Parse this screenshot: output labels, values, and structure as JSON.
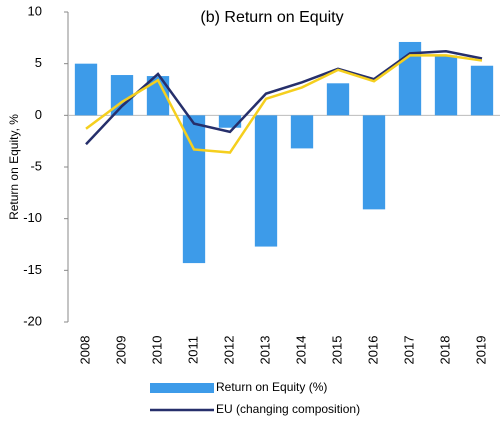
{
  "chart_data": {
    "type": "bar-line",
    "title": "(b) Return on Equity",
    "y_label": "Return on Equity, %",
    "categories": [
      "2008",
      "2009",
      "2010",
      "2011",
      "2012",
      "2013",
      "2014",
      "2015",
      "2016",
      "2017",
      "2018",
      "2019"
    ],
    "series": [
      {
        "name": "Return on Equity (%)",
        "type": "bar",
        "color": "#3d9be9",
        "values": [
          5.0,
          3.9,
          3.8,
          -14.3,
          -1.2,
          -12.7,
          -3.2,
          3.1,
          -9.1,
          7.1,
          5.8,
          4.8
        ]
      },
      {
        "name": "EU (changing composition)",
        "type": "line",
        "color": "#262f6b",
        "values": [
          -2.8,
          0.9,
          4.0,
          -0.8,
          -1.6,
          2.1,
          3.2,
          4.5,
          3.5,
          6.0,
          6.2,
          5.5
        ]
      },
      {
        "type": "line",
        "color": "#f5cf1e",
        "values": [
          -1.3,
          1.3,
          3.4,
          -3.3,
          -3.6,
          1.6,
          2.7,
          4.4,
          3.3,
          5.8,
          5.8,
          5.3
        ]
      }
    ],
    "ylim": [
      -20,
      10
    ],
    "yticks": [
      -20,
      -15,
      -10,
      -5,
      0,
      5,
      10
    ]
  }
}
